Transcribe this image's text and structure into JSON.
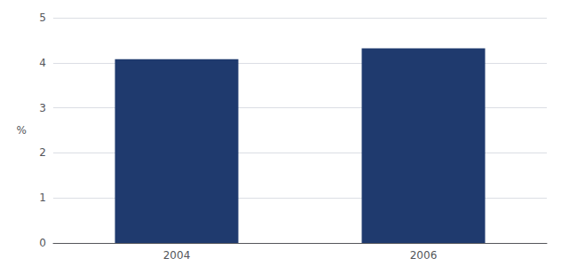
{
  "chart_data": {
    "type": "bar",
    "ylabel": "%",
    "categories": [
      "2004",
      "2006"
    ],
    "values": [
      4.08,
      4.32
    ],
    "color": "#1F3A6E",
    "ylim": [
      0,
      5
    ],
    "yticks": [
      0,
      1,
      2,
      3,
      4,
      5
    ],
    "grid": true
  }
}
